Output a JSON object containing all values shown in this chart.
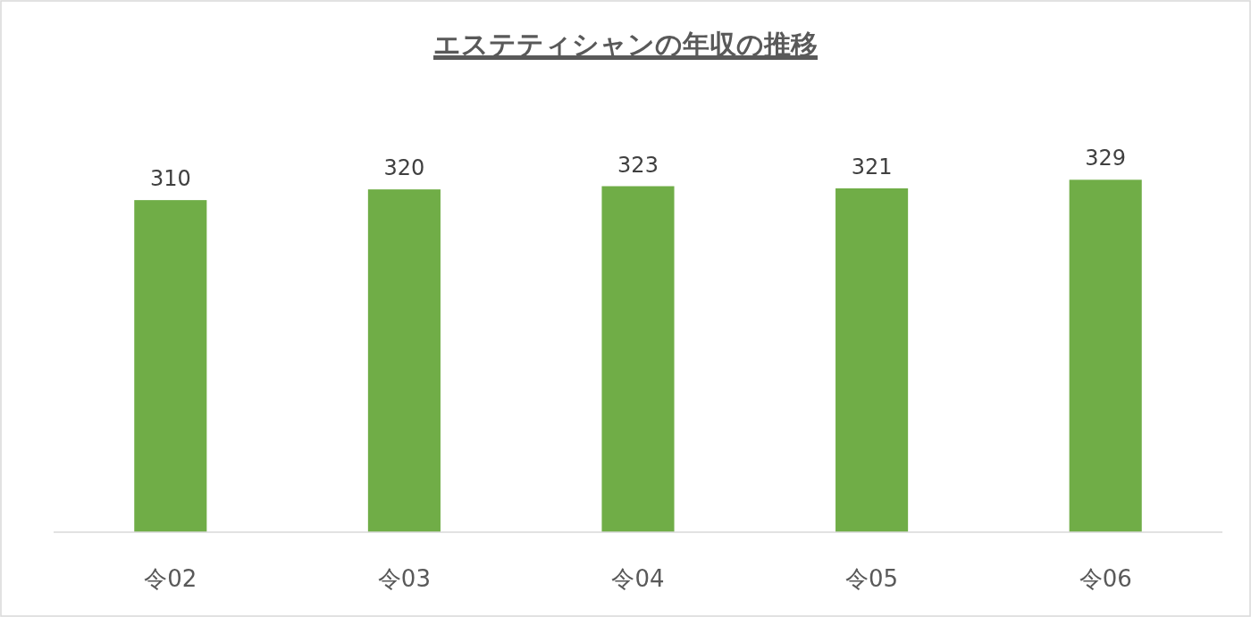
{
  "chart_data": {
    "type": "bar",
    "title": "エステティシャンの年収の推移",
    "categories": [
      "令02",
      "令03",
      "令04",
      "令05",
      "令06"
    ],
    "values": [
      310,
      320,
      323,
      321,
      329
    ],
    "color": "#70ad47",
    "data_labels": true
  }
}
